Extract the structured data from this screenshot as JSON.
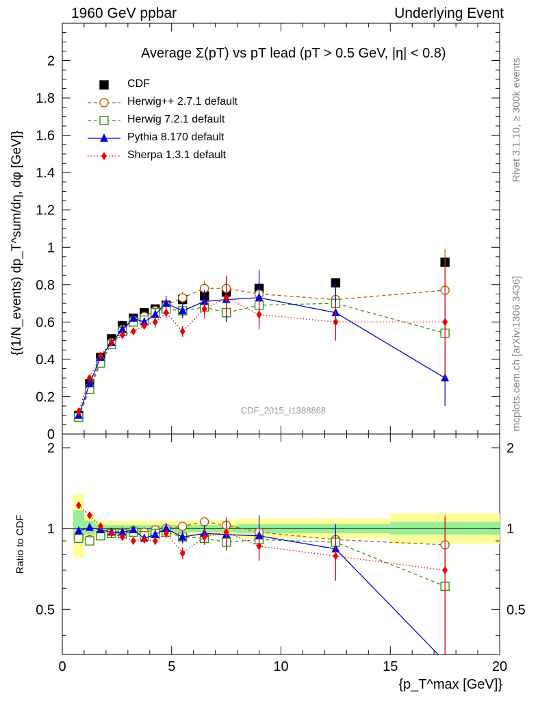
{
  "header": {
    "left": "1960 GeV ppbar",
    "right": "Underlying Event"
  },
  "side_labels": {
    "rivet": "Rivet 3.1.10, ≥ 300k events",
    "mcplots": "mcplots.cern.ch [arXiv:1306.3436]"
  },
  "analysis_label": "CDF_2015_I1388868",
  "chart_data": [
    {
      "type": "scatter",
      "panel": "main",
      "title": "Average Σ(pT) vs pT lead (pT > 0.5 GeV, |η| < 0.8)",
      "ylabel": "{(1/N_events) dp_T^sum/dη, dφ [GeV]}",
      "xlim": [
        0,
        20
      ],
      "ylim": [
        0,
        2.2
      ],
      "yticks": [
        "0",
        "0.2",
        "0.4",
        "0.6",
        "0.8",
        "1",
        "1.2",
        "1.4",
        "1.6",
        "1.8",
        "2"
      ],
      "series": [
        {
          "name": "CDF",
          "color": "#000000",
          "marker": "square-filled",
          "line": "none",
          "x": [
            0.75,
            1.25,
            1.75,
            2.25,
            2.75,
            3.25,
            3.75,
            4.25,
            4.75,
            5.5,
            6.5,
            7.5,
            9.0,
            12.5,
            17.5
          ],
          "y": [
            0.1,
            0.27,
            0.41,
            0.51,
            0.58,
            0.62,
            0.65,
            0.67,
            0.69,
            0.72,
            0.74,
            0.76,
            0.78,
            0.81,
            0.92
          ],
          "err": [
            0.01,
            0.01,
            0.01,
            0.01,
            0.01,
            0.01,
            0.01,
            0.01,
            0.01,
            0.01,
            0.01,
            0.01,
            0.02,
            0.02,
            0.02
          ]
        },
        {
          "name": "Herwig++ 2.7.1 default",
          "color": "#b35a00",
          "marker": "circle-open",
          "line": "dashed",
          "x": [
            0.75,
            1.25,
            1.75,
            2.25,
            2.75,
            3.25,
            3.75,
            4.25,
            4.75,
            5.5,
            6.5,
            7.5,
            9.0,
            12.5,
            17.5
          ],
          "y": [
            0.09,
            0.25,
            0.39,
            0.49,
            0.56,
            0.61,
            0.63,
            0.66,
            0.69,
            0.73,
            0.78,
            0.78,
            0.75,
            0.72,
            0.77
          ],
          "err": [
            0.01,
            0.01,
            0.01,
            0.01,
            0.01,
            0.01,
            0.02,
            0.02,
            0.03,
            0.03,
            0.04,
            0.07,
            0.08,
            0.08,
            0.22
          ]
        },
        {
          "name": "Herwig 7.2.1 default",
          "color": "#3c8c14",
          "marker": "square-open",
          "line": "dashed",
          "x": [
            0.75,
            1.25,
            1.75,
            2.25,
            2.75,
            3.25,
            3.75,
            4.25,
            4.75,
            5.5,
            6.5,
            7.5,
            9.0,
            12.5,
            17.5
          ],
          "y": [
            0.09,
            0.24,
            0.38,
            0.48,
            0.55,
            0.6,
            0.61,
            0.65,
            0.67,
            0.66,
            0.68,
            0.65,
            0.69,
            0.7,
            0.54
          ],
          "err": [
            0.01,
            0.01,
            0.01,
            0.01,
            0.01,
            0.01,
            0.02,
            0.02,
            0.03,
            0.03,
            0.04,
            0.05,
            0.06,
            0.08,
            0.16
          ]
        },
        {
          "name": "Pythia 8.170 default",
          "color": "#0000dd",
          "marker": "triangle-filled",
          "line": "solid",
          "x": [
            0.75,
            1.25,
            1.75,
            2.25,
            2.75,
            3.25,
            3.75,
            4.25,
            4.75,
            5.5,
            6.5,
            7.5,
            9.0,
            12.5,
            17.5
          ],
          "y": [
            0.1,
            0.27,
            0.41,
            0.49,
            0.56,
            0.62,
            0.6,
            0.64,
            0.7,
            0.66,
            0.71,
            0.72,
            0.73,
            0.65,
            0.3
          ],
          "err": [
            0.01,
            0.01,
            0.01,
            0.01,
            0.01,
            0.02,
            0.02,
            0.03,
            0.04,
            0.04,
            0.06,
            0.12,
            0.15,
            0.15,
            0.15
          ]
        },
        {
          "name": "Sherpa 1.3.1 default",
          "color": "#ee0000",
          "marker": "diamond-filled",
          "line": "dotted",
          "x": [
            0.75,
            1.25,
            1.75,
            2.25,
            2.75,
            3.25,
            3.75,
            4.25,
            4.75,
            5.5,
            6.5,
            7.5,
            9.0,
            12.5,
            17.5
          ],
          "y": [
            0.12,
            0.3,
            0.42,
            0.49,
            0.53,
            0.55,
            0.58,
            0.6,
            0.65,
            0.55,
            0.67,
            0.73,
            0.64,
            0.6,
            0.6
          ],
          "err": [
            0.01,
            0.01,
            0.01,
            0.01,
            0.02,
            0.02,
            0.02,
            0.03,
            0.03,
            0.03,
            0.05,
            0.1,
            0.08,
            0.1,
            0.3
          ]
        }
      ]
    },
    {
      "type": "scatter",
      "panel": "ratio",
      "ylabel": "Ratio to CDF",
      "xlabel": "{p_T^max [GeV]}",
      "xlim": [
        0,
        20
      ],
      "ylim": [
        0.34,
        2.25
      ],
      "log_scale_y": true,
      "xticks": [
        "0",
        "5",
        "10",
        "15",
        "20"
      ],
      "yticks": [
        "0.5",
        "1",
        "2"
      ],
      "reference_line": 1.0,
      "bands": [
        {
          "x_from": 0.5,
          "x_to": 1.0,
          "inner": [
            0.91,
            1.17
          ],
          "outer": [
            0.78,
            1.34
          ]
        },
        {
          "x_from": 1.0,
          "x_to": 1.5,
          "inner": [
            0.95,
            1.07
          ],
          "outer": [
            0.9,
            1.13
          ]
        },
        {
          "x_from": 1.5,
          "x_to": 2.0,
          "inner": [
            0.97,
            1.04
          ],
          "outer": [
            0.94,
            1.07
          ]
        },
        {
          "x_from": 2.0,
          "x_to": 8.0,
          "inner": [
            0.97,
            1.03
          ],
          "outer": [
            0.94,
            1.07
          ]
        },
        {
          "x_from": 8.0,
          "x_to": 15.0,
          "inner": [
            0.96,
            1.04
          ],
          "outer": [
            0.92,
            1.09
          ]
        },
        {
          "x_from": 15.0,
          "x_to": 20.0,
          "inner": [
            0.95,
            1.06
          ],
          "outer": [
            0.88,
            1.14
          ]
        }
      ],
      "series": [
        {
          "name": "Herwig++ 2.7.1 default",
          "color": "#b35a00",
          "x": [
            0.75,
            1.25,
            1.75,
            2.25,
            2.75,
            3.25,
            3.75,
            4.25,
            4.75,
            5.5,
            6.5,
            7.5,
            9.0,
            12.5,
            17.5
          ],
          "y": [
            0.92,
            0.91,
            0.95,
            0.96,
            0.97,
            0.98,
            0.97,
            0.99,
            1.0,
            1.02,
            1.06,
            1.03,
            0.97,
            0.91,
            0.87
          ],
          "err": [
            0.01,
            0.01,
            0.01,
            0.01,
            0.01,
            0.01,
            0.02,
            0.02,
            0.03,
            0.03,
            0.04,
            0.07,
            0.08,
            0.1,
            0.25
          ]
        },
        {
          "name": "Herwig 7.2.1 default",
          "color": "#3c8c14",
          "x": [
            0.75,
            1.25,
            1.75,
            2.25,
            2.75,
            3.25,
            3.75,
            4.25,
            4.75,
            5.5,
            6.5,
            7.5,
            9.0,
            12.5,
            17.5
          ],
          "y": [
            0.92,
            0.9,
            0.94,
            0.96,
            0.96,
            0.97,
            0.94,
            0.96,
            0.97,
            0.93,
            0.92,
            0.89,
            0.91,
            0.89,
            0.61
          ],
          "err": [
            0.01,
            0.01,
            0.01,
            0.01,
            0.01,
            0.01,
            0.02,
            0.02,
            0.03,
            0.03,
            0.04,
            0.06,
            0.07,
            0.08,
            0.2
          ]
        },
        {
          "name": "Pythia 8.170 default",
          "color": "#0000dd",
          "x": [
            0.75,
            1.25,
            1.75,
            2.25,
            2.75,
            3.25,
            3.75,
            4.25,
            4.75,
            5.5,
            6.5,
            7.5,
            9.0,
            12.5,
            17.5
          ],
          "y": [
            0.98,
            1.01,
            0.99,
            0.97,
            0.97,
            0.99,
            0.92,
            0.95,
            1.0,
            0.93,
            0.96,
            0.95,
            0.94,
            0.84,
            0.32
          ],
          "err": [
            0.01,
            0.01,
            0.01,
            0.01,
            0.02,
            0.02,
            0.03,
            0.04,
            0.05,
            0.05,
            0.07,
            0.12,
            0.18,
            0.2,
            0.2
          ]
        },
        {
          "name": "Sherpa 1.3.1 default",
          "color": "#ee0000",
          "x": [
            0.75,
            1.25,
            1.75,
            2.25,
            2.75,
            3.25,
            3.75,
            4.25,
            4.75,
            5.5,
            6.5,
            7.5,
            9.0,
            12.5,
            17.5
          ],
          "y": [
            1.22,
            1.12,
            1.02,
            0.96,
            0.93,
            0.9,
            0.91,
            0.9,
            0.96,
            0.81,
            0.93,
            0.97,
            0.86,
            0.79,
            0.7
          ],
          "err": [
            0.01,
            0.01,
            0.01,
            0.01,
            0.02,
            0.02,
            0.02,
            0.03,
            0.04,
            0.04,
            0.06,
            0.13,
            0.1,
            0.14,
            0.4
          ]
        }
      ]
    }
  ]
}
